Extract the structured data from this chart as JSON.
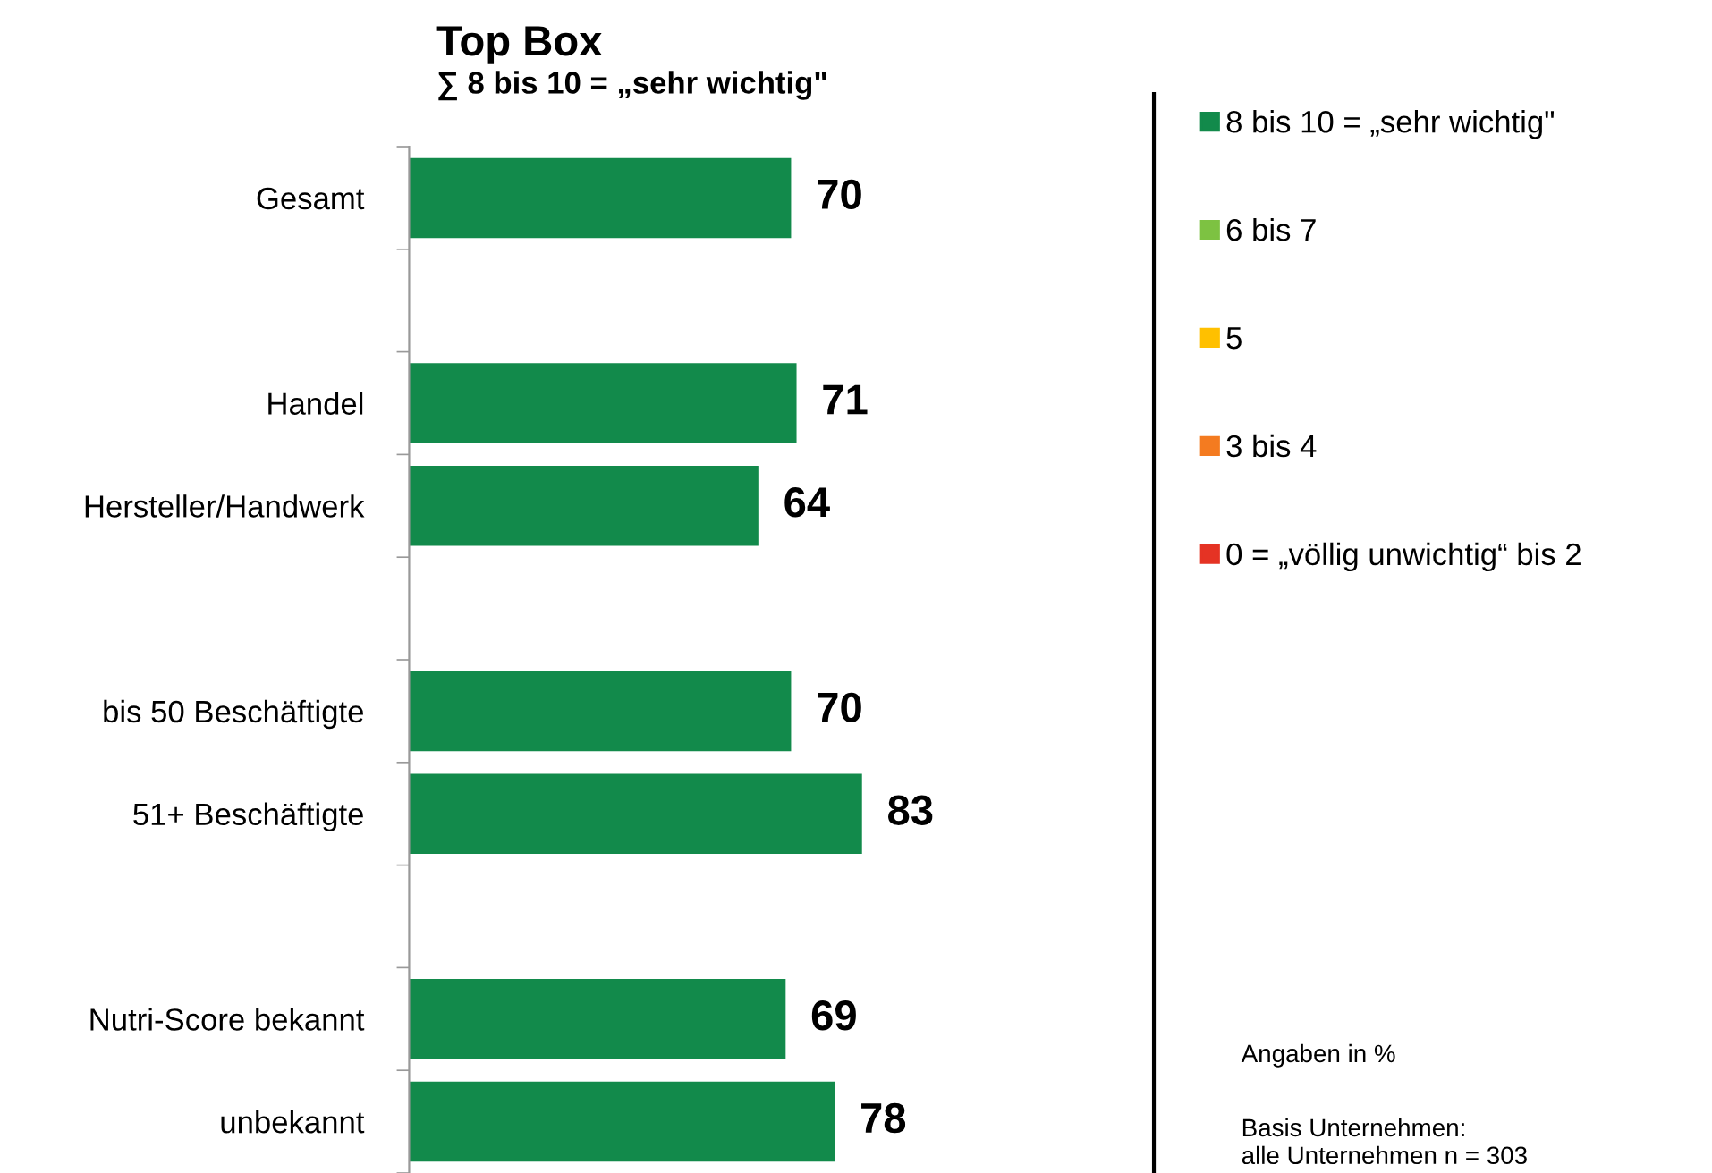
{
  "chart_data": {
    "type": "bar",
    "orientation": "horizontal",
    "title": "Top Box",
    "subtitle": "∑ 8 bis 10 = „sehr wichtig\"",
    "categories": [
      "Gesamt",
      null,
      "Handel",
      "Hersteller/Handwerk",
      null,
      "bis 50 Beschäftigte",
      "51+ Beschäftigte",
      null,
      "Nutri-Score bekannt",
      "unbekannt"
    ],
    "series": [
      {
        "name": "8 bis 10 = „sehr wichtig\"",
        "color": "#128a4b",
        "values": [
          70,
          null,
          71,
          64,
          null,
          70,
          83,
          null,
          69,
          78
        ]
      },
      {
        "name": "6 bis 7",
        "color": "#7dc242",
        "values": [
          null,
          null,
          null,
          null,
          null,
          null,
          null,
          null,
          null,
          null
        ]
      },
      {
        "name": "5",
        "color": "#ffc000",
        "values": [
          null,
          null,
          null,
          null,
          null,
          null,
          null,
          null,
          null,
          null
        ]
      },
      {
        "name": "3 bis 4",
        "color": "#f47b20",
        "values": [
          null,
          null,
          null,
          null,
          null,
          null,
          null,
          null,
          null,
          null
        ]
      },
      {
        "name": "0 = „völlig unwichtig“ bis 2",
        "color": "#e53324",
        "values": [
          null,
          null,
          null,
          null,
          null,
          null,
          null,
          null,
          null,
          null
        ]
      }
    ],
    "data_labels": true,
    "legend": "right",
    "grid": false,
    "tick_labels": "y",
    "annotations": [
      "Angaben in %",
      "Basis Unternehmen:\nalle Unternehmen n = 303"
    ]
  }
}
